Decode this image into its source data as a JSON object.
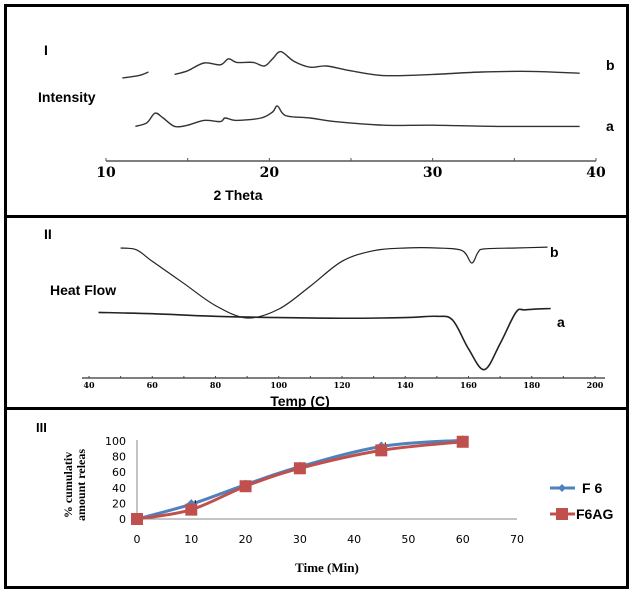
{
  "chart_data": [
    {
      "panel": "I",
      "type": "line",
      "title": "",
      "xlabel": "2 Theta",
      "ylabel": "Intensity",
      "xlim": [
        10,
        40
      ],
      "xticks": [
        10,
        20,
        30,
        40
      ],
      "grid": false,
      "series": [
        {
          "name": "b",
          "x": [
            11,
            12,
            12.6,
            14.2,
            15,
            16,
            17,
            17.5,
            18,
            19,
            19.7,
            20.2,
            20.7,
            21.5,
            22.5,
            23.5,
            25,
            27,
            30,
            33,
            36,
            39
          ],
          "y": [
            0.3,
            0.34,
            0.4,
            0.36,
            0.42,
            0.55,
            0.52,
            0.62,
            0.56,
            0.56,
            0.5,
            0.62,
            0.74,
            0.58,
            0.48,
            0.5,
            0.42,
            0.34,
            0.36,
            0.4,
            0.41,
            0.38
          ]
        },
        {
          "name": "a",
          "x": [
            11.8,
            12.5,
            13.0,
            13.5,
            14.2,
            15,
            16,
            17,
            17.3,
            18,
            19.5,
            20.2,
            20.5,
            21,
            22.5,
            24,
            27,
            30,
            34,
            39
          ],
          "y": [
            0.06,
            0.12,
            0.28,
            0.2,
            0.06,
            0.08,
            0.16,
            0.14,
            0.2,
            0.16,
            0.2,
            0.3,
            0.4,
            0.24,
            0.2,
            0.14,
            0.08,
            0.08,
            0.06,
            0.06
          ]
        }
      ],
      "annotations": [
        "I",
        "b",
        "a"
      ]
    },
    {
      "panel": "II",
      "type": "line",
      "title": "",
      "xlabel": "Temp (C)",
      "ylabel": "Heat Flow",
      "xlim": [
        40,
        200
      ],
      "xticks": [
        40,
        60,
        80,
        100,
        120,
        140,
        160,
        180,
        200
      ],
      "grid": false,
      "series": [
        {
          "name": "b",
          "x": [
            50,
            55,
            60,
            70,
            80,
            90,
            100,
            110,
            120,
            130,
            140,
            150,
            158,
            161,
            163,
            165,
            175,
            185
          ],
          "y": [
            0.95,
            0.93,
            0.8,
            0.55,
            0.3,
            0.16,
            0.26,
            0.52,
            0.8,
            0.92,
            0.95,
            0.95,
            0.92,
            0.78,
            0.9,
            0.94,
            0.95,
            0.96
          ]
        },
        {
          "name": "a",
          "x": [
            43,
            60,
            80,
            100,
            120,
            140,
            150,
            155,
            160,
            165,
            170,
            175,
            178,
            186
          ],
          "y": [
            0.12,
            0.11,
            0.09,
            0.08,
            0.075,
            0.08,
            0.09,
            0.06,
            -0.16,
            -0.32,
            -0.12,
            0.12,
            0.14,
            0.15
          ]
        }
      ],
      "annotations": [
        "II",
        "b",
        "a"
      ]
    },
    {
      "panel": "III",
      "type": "line",
      "title": "",
      "xlabel": "Time (Min)",
      "ylabel": "% cumulative amount released",
      "ylabel_visible": [
        "% cumulativ",
        "amount releas"
      ],
      "xlim": [
        0,
        70
      ],
      "ylim": [
        0,
        100
      ],
      "xticks": [
        0,
        10,
        20,
        30,
        40,
        50,
        60,
        70
      ],
      "yticks": [
        0,
        20,
        40,
        60,
        80,
        100
      ],
      "grid": false,
      "legend": "right",
      "x": [
        0,
        10,
        20,
        30,
        45,
        60
      ],
      "series": [
        {
          "name": "F 6",
          "marker": "diamond",
          "color": "#4F81BD",
          "values": [
            0,
            19,
            44,
            67,
            93,
            101
          ]
        },
        {
          "name": "F6AG",
          "marker": "square",
          "color": "#C0504D",
          "values": [
            0,
            12,
            42,
            65,
            88,
            99
          ]
        }
      ],
      "annotations": [
        "III"
      ]
    }
  ]
}
